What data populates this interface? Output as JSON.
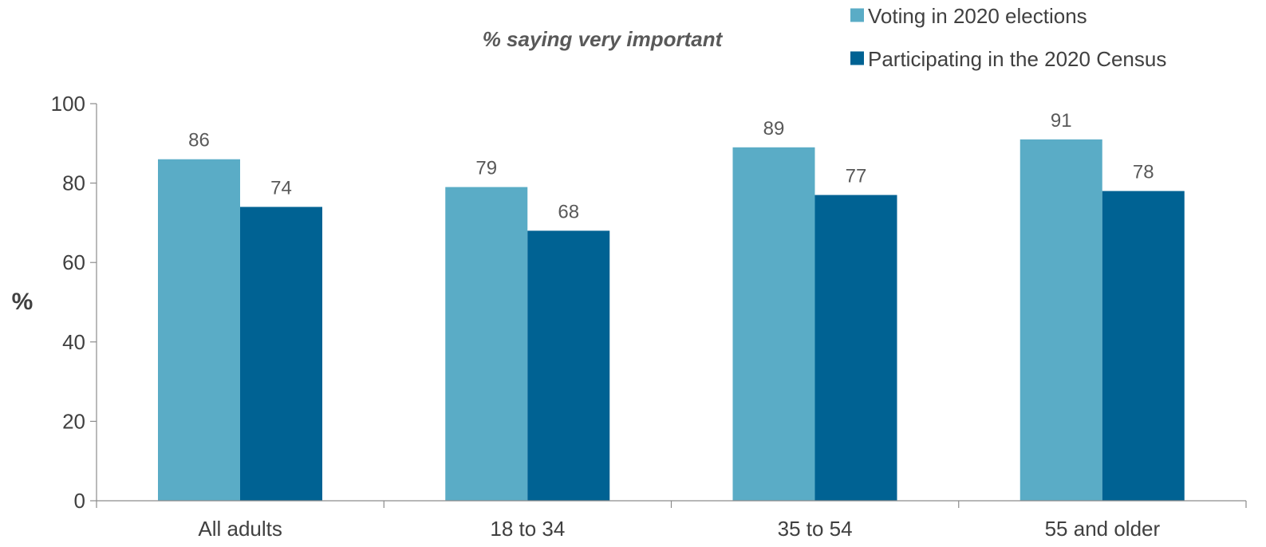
{
  "chart_data": {
    "type": "bar",
    "subtitle": "% saying very important",
    "ylabel": "%",
    "xlabel": "",
    "categories": [
      "All adults",
      "18 to 34",
      "35 to 54",
      "55 and older"
    ],
    "series": [
      {
        "name": "Voting in 2020 elections",
        "color": "#5aacc6",
        "values": [
          86,
          79,
          89,
          91
        ]
      },
      {
        "name": "Participating in the 2020 Census",
        "color": "#006293",
        "values": [
          74,
          68,
          77,
          78
        ]
      }
    ],
    "ylim": [
      0,
      100
    ],
    "yticks": [
      0,
      20,
      40,
      60,
      80,
      100
    ],
    "grid": false,
    "legend_position": "top-right",
    "show_data_labels": true
  }
}
